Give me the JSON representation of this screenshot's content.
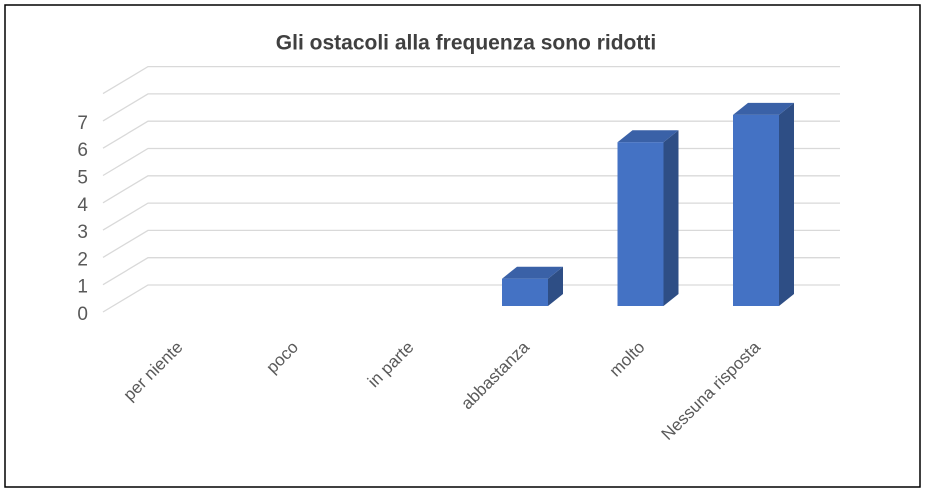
{
  "chart_data": {
    "type": "bar3d",
    "title": "Gli ostacoli alla frequenza sono ridotti",
    "categories": [
      "per niente",
      "poco",
      "in parte",
      "abbastanza",
      "molto",
      "Nessuna risposta"
    ],
    "values": [
      0,
      0,
      0,
      1,
      6,
      7
    ],
    "color": "#4472c4",
    "ylim": [
      0,
      8
    ],
    "yticks": [
      0,
      1,
      2,
      3,
      4,
      5,
      6,
      7
    ],
    "grid": true
  }
}
